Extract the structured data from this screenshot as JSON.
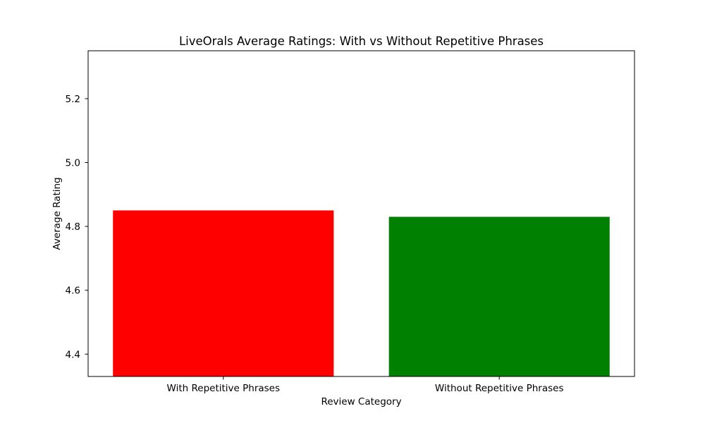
{
  "chart_data": {
    "type": "bar",
    "title": "LiveOrals Average Ratings: With vs Without Repetitive Phrases",
    "xlabel": "Review Category",
    "ylabel": "Average Rating",
    "categories": [
      "With Repetitive Phrases",
      "Without Repetitive Phrases"
    ],
    "values": [
      4.85,
      4.83
    ],
    "colors": [
      "#ff0000",
      "#008000"
    ],
    "ylim": [
      4.33,
      5.35
    ],
    "yticks": [
      4.4,
      4.6,
      4.8,
      5.0,
      5.2
    ],
    "ytick_labels": [
      "4.4",
      "4.6",
      "4.8",
      "5.0",
      "5.2"
    ],
    "grid": false,
    "legend": "none"
  }
}
